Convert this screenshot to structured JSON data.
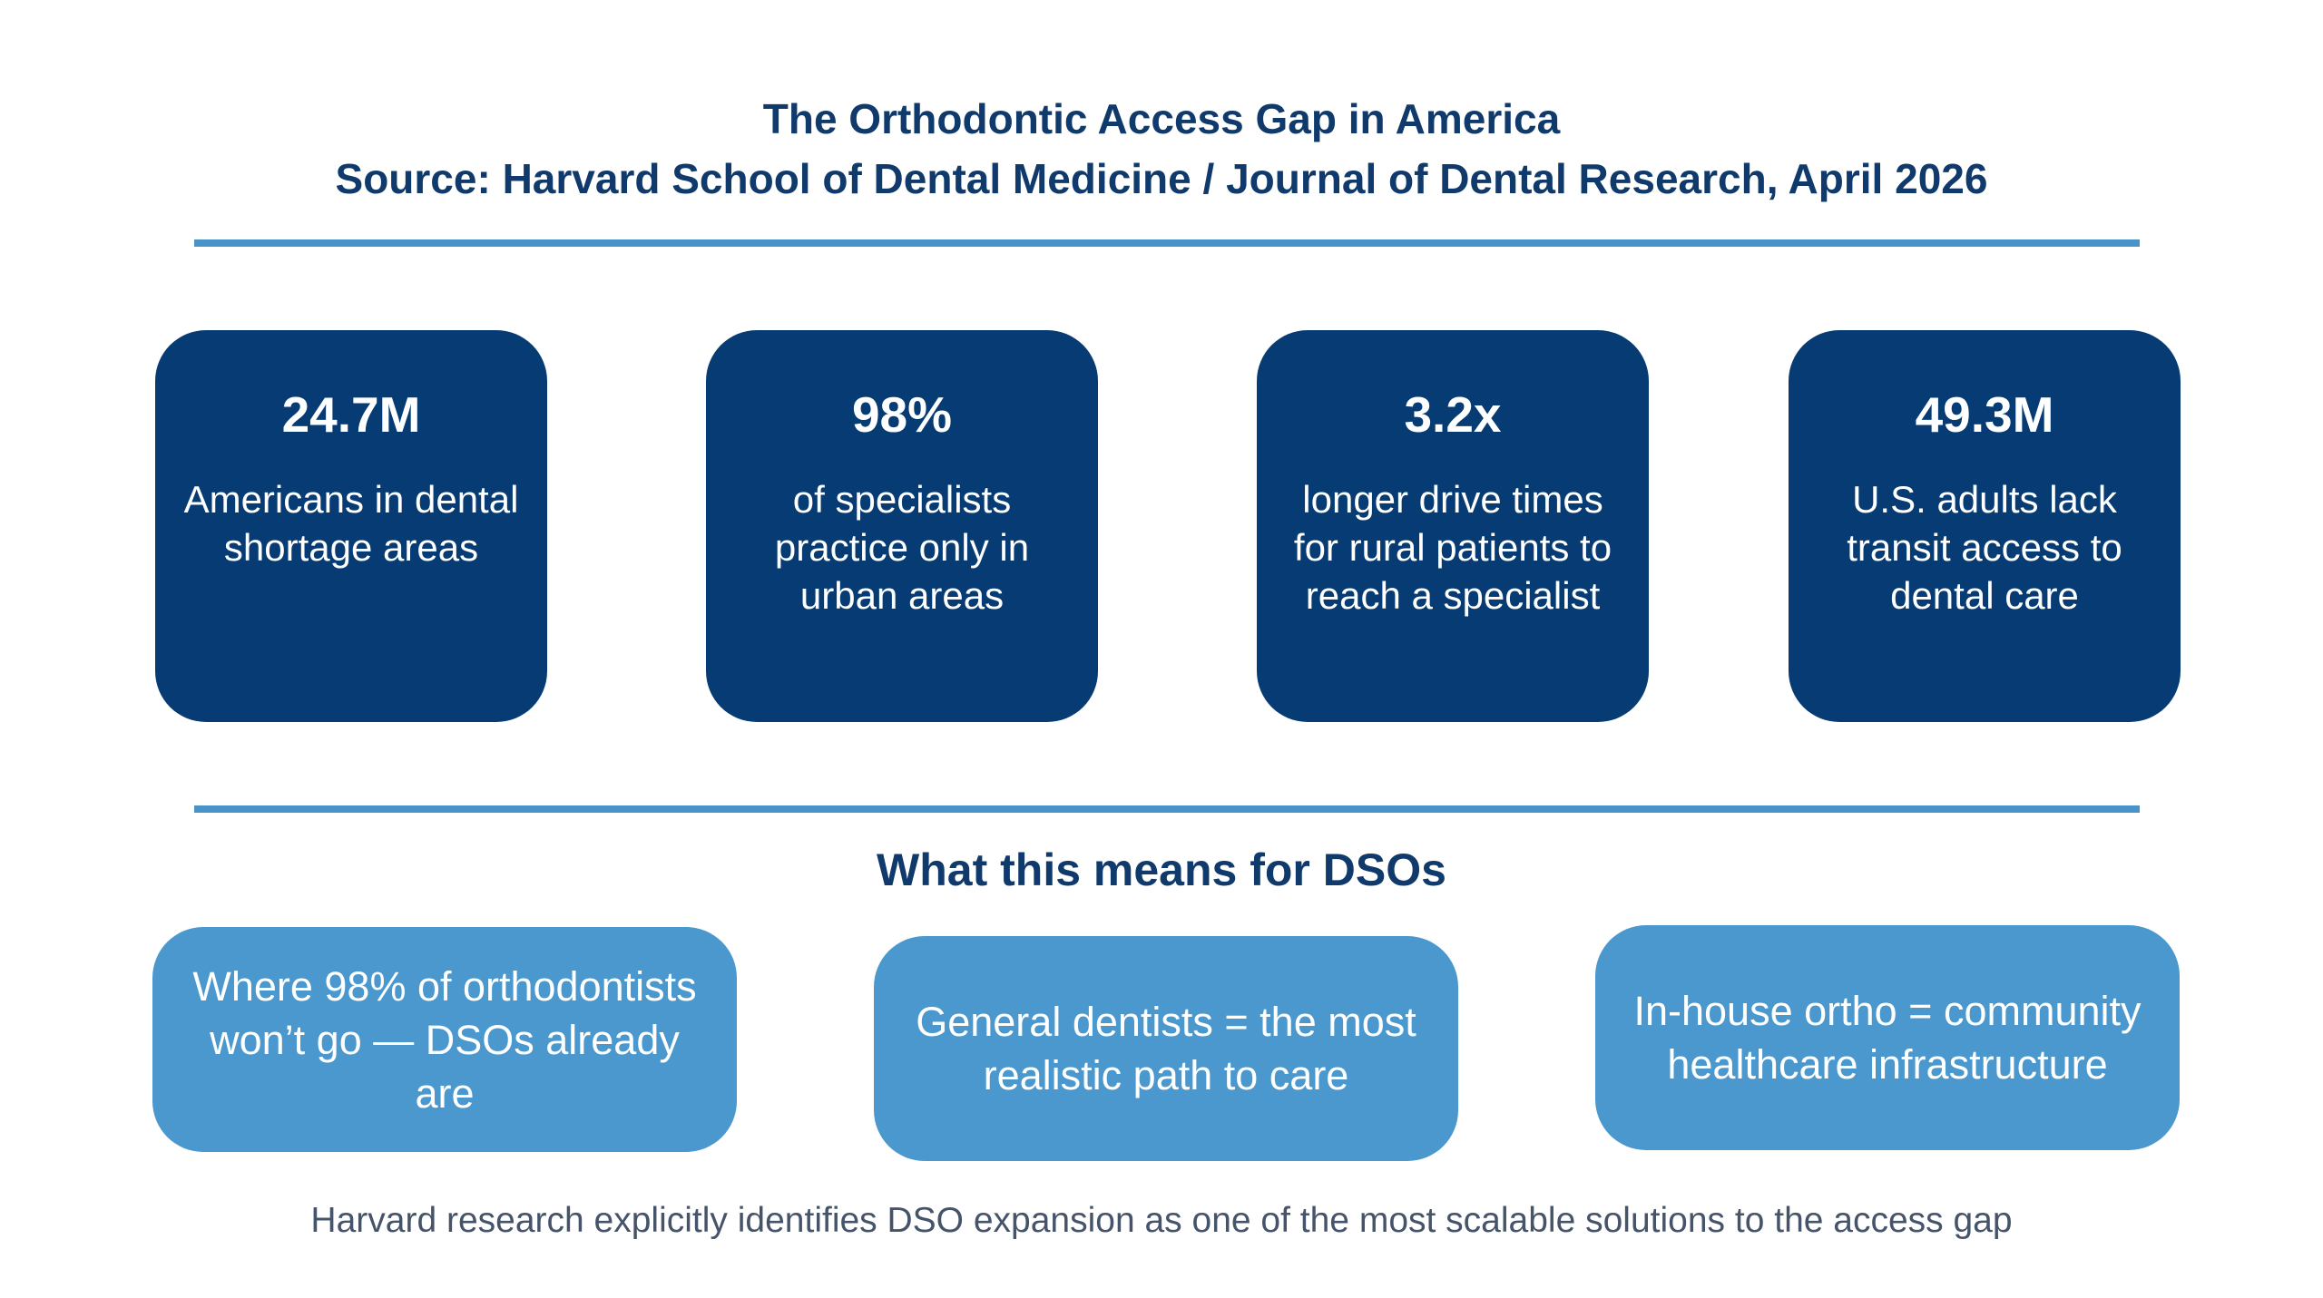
{
  "header": {
    "title": "The Orthodontic Access Gap in America",
    "source": "Source: Harvard School of Dental Medicine / Journal of Dental Research, April 2026"
  },
  "stats": [
    {
      "value": "24.7M",
      "description": "Americans in dental shortage areas"
    },
    {
      "value": "98%",
      "description": "of specialists practice only in urban areas"
    },
    {
      "value": "3.2x",
      "description": "longer drive times for rural patients to reach a specialist"
    },
    {
      "value": "49.3M",
      "description": "U.S. adults lack transit access to dental care"
    }
  ],
  "implications": {
    "heading": "What this means for DSOs",
    "items": [
      {
        "text": "Where 98% of orthodontists won’t go — DSOs already are"
      },
      {
        "text": "General dentists = the most realistic path to care"
      },
      {
        "text": "In-house ortho = community healthcare infrastructure"
      }
    ]
  },
  "footer": {
    "note": "Harvard research explicitly identifies DSO expansion as one of the most scalable solutions to the access gap"
  },
  "colors": {
    "navy": "#063b74",
    "heading": "#0f3a6b",
    "accent_blue": "#4a98cd",
    "rule": "#4a93c9",
    "footer_text": "#45546a"
  }
}
